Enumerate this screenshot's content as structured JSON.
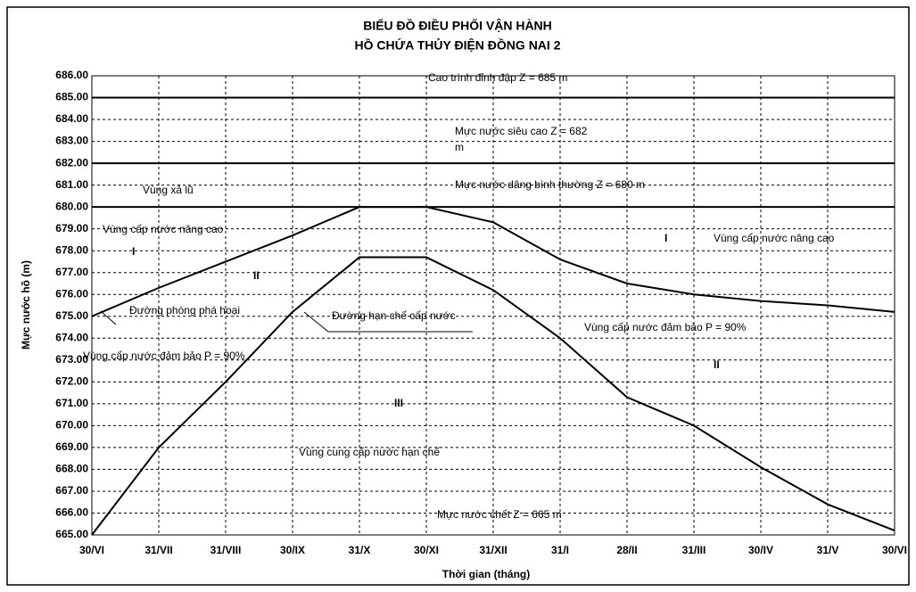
{
  "chart_data": {
    "type": "line",
    "title": [
      "BIỂU ĐỒ ĐIỀU PHỐI VẬN HÀNH",
      "HỒ CHỨA THỦY ĐIỆN ĐỒNG NAI 2"
    ],
    "x_label": "Thời gian (tháng)",
    "y_label": "Mực nước hồ (m)",
    "categories": [
      "30/VI",
      "31/VII",
      "31/VIII",
      "30/IX",
      "31/X",
      "30/XI",
      "31/XII",
      "31/I",
      "28/II",
      "31/III",
      "30/IV",
      "31/V",
      "30/VI"
    ],
    "series": [
      {
        "name": "Đường phòng phá hoại",
        "color": "#000000",
        "values": [
          675,
          676.3,
          677.5,
          678.7,
          680,
          680,
          679.3,
          677.6,
          676.5,
          676,
          675.7,
          675.5,
          675.2
        ]
      },
      {
        "name": "Đường hạn chế cấp nước",
        "color": "#000000",
        "values": [
          665,
          669,
          672,
          675.2,
          677.7,
          677.7,
          676.2,
          674,
          671.3,
          670,
          668.1,
          666.4,
          665.2
        ]
      }
    ],
    "levels": [
      685,
      682,
      680
    ],
    "ylim": [
      665,
      686
    ],
    "yticks": [
      {
        "value": 665,
        "label": "665.00"
      },
      {
        "value": 666,
        "label": "666.00"
      },
      {
        "value": 667,
        "label": "667.00"
      },
      {
        "value": 668,
        "label": "668.00"
      },
      {
        "value": 669,
        "label": "669.00"
      },
      {
        "value": 670,
        "label": "670.00"
      },
      {
        "value": 671,
        "label": "671.00"
      },
      {
        "value": 672,
        "label": "672.00"
      },
      {
        "value": 673,
        "label": "673.00"
      },
      {
        "value": 674,
        "label": "674.00"
      },
      {
        "value": 675,
        "label": "675.00"
      },
      {
        "value": 676,
        "label": "676.00"
      },
      {
        "value": 677,
        "label": "677.00"
      },
      {
        "value": 678,
        "label": "678.00"
      },
      {
        "value": 679,
        "label": "679.00"
      },
      {
        "value": 680,
        "label": "680.00"
      },
      {
        "value": 681,
        "label": "681.00"
      },
      {
        "value": 682,
        "label": "682.00"
      },
      {
        "value": 683,
        "label": "683.00"
      },
      {
        "value": 684,
        "label": "684.00"
      },
      {
        "value": 685,
        "label": "685.00"
      },
      {
        "value": 686,
        "label": "686.00"
      }
    ],
    "grid": true,
    "annotations": [
      "Cao trình đỉnh đập Z = 685 m",
      "Mực nước siêu cao Z = 682",
      "m",
      "Mực nước dâng bình thường Z = 680 m",
      "Vùng xả lũ",
      "Vùng cấp nước nâng cao",
      "I",
      "II",
      "Đường phòng phá hoại",
      "Đường hạn chế cấp nước",
      "Vùng cấp nước đảm bảo P = 90%",
      "III",
      "Vùng cung cấp nước hạn chế",
      "Mực nước chết Z = 665 m",
      "I",
      "Vùng cấp nước nâng cao",
      "Vùng cấp nước đảm bảo P = 90%",
      "II"
    ]
  }
}
